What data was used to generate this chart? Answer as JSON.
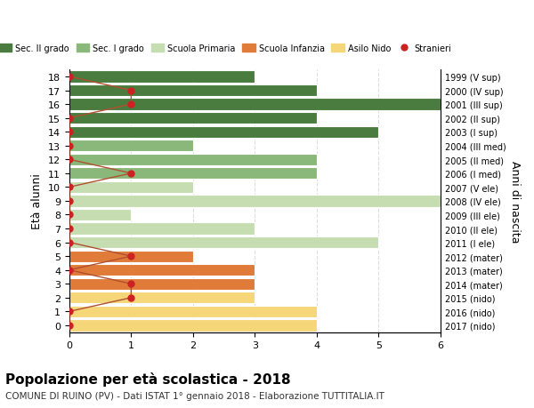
{
  "ages": [
    18,
    17,
    16,
    15,
    14,
    13,
    12,
    11,
    10,
    9,
    8,
    7,
    6,
    5,
    4,
    3,
    2,
    1,
    0
  ],
  "right_labels": [
    "1999 (V sup)",
    "2000 (IV sup)",
    "2001 (III sup)",
    "2002 (II sup)",
    "2003 (I sup)",
    "2004 (III med)",
    "2005 (II med)",
    "2006 (I med)",
    "2007 (V ele)",
    "2008 (IV ele)",
    "2009 (III ele)",
    "2010 (II ele)",
    "2011 (I ele)",
    "2012 (mater)",
    "2013 (mater)",
    "2014 (mater)",
    "2015 (nido)",
    "2016 (nido)",
    "2017 (nido)"
  ],
  "bar_values": [
    3,
    4,
    6,
    4,
    5,
    2,
    4,
    4,
    2,
    6,
    1,
    3,
    5,
    2,
    3,
    3,
    3,
    4,
    4
  ],
  "bar_colors": [
    "#4a7c3f",
    "#4a7c3f",
    "#4a7c3f",
    "#4a7c3f",
    "#4a7c3f",
    "#8ab87a",
    "#8ab87a",
    "#8ab87a",
    "#c5ddb0",
    "#c5ddb0",
    "#c5ddb0",
    "#c5ddb0",
    "#c5ddb0",
    "#e07b39",
    "#e07b39",
    "#e07b39",
    "#f5d77a",
    "#f5d77a",
    "#f5d77a"
  ],
  "stranieri_ages": [
    18,
    17,
    16,
    15,
    14,
    13,
    12,
    11,
    10,
    9,
    8,
    7,
    6,
    5,
    4,
    3,
    2,
    1,
    0
  ],
  "stranieri_values": [
    0,
    1,
    1,
    0,
    0,
    0,
    0,
    1,
    0,
    0,
    0,
    0,
    0,
    1,
    0,
    1,
    1,
    0,
    0
  ],
  "stranieri_color": "#cc2222",
  "stranieri_line_color": "#b05030",
  "legend_items": [
    {
      "label": "Sec. II grado",
      "color": "#4a7c3f"
    },
    {
      "label": "Sec. I grado",
      "color": "#8ab87a"
    },
    {
      "label": "Scuola Primaria",
      "color": "#c5ddb0"
    },
    {
      "label": "Scuola Infanzia",
      "color": "#e07b39"
    },
    {
      "label": "Asilo Nido",
      "color": "#f5d77a"
    },
    {
      "label": "Stranieri",
      "color": "#cc2222"
    }
  ],
  "ylabel": "Età alunni",
  "right_ylabel": "Anni di nascita",
  "title": "Popolazione per età scolastica - 2018",
  "subtitle": "COMUNE DI RUINO (PV) - Dati ISTAT 1° gennaio 2018 - Elaborazione TUTTITALIA.IT",
  "xlim": [
    0,
    6
  ],
  "background_color": "#ffffff",
  "grid_color": "#dddddd"
}
